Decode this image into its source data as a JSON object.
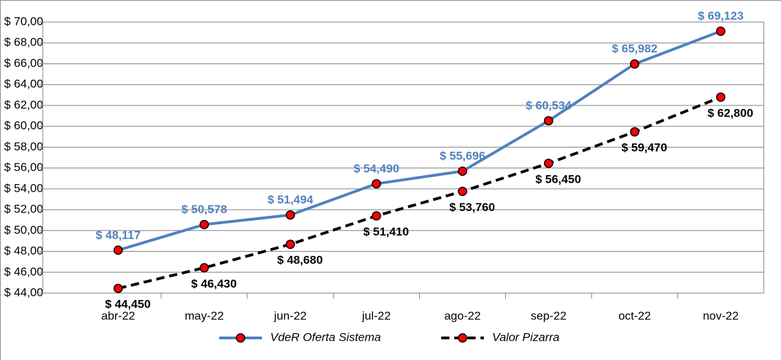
{
  "chart_data": {
    "type": "line",
    "categories": [
      "abr-22",
      "may-22",
      "jun-22",
      "jul-22",
      "ago-22",
      "sep-22",
      "oct-22",
      "nov-22"
    ],
    "series": [
      {
        "name": "VdeR Oferta Sistema",
        "color": "#4f81bd",
        "dashed": false,
        "values": [
          48.117,
          50.578,
          51.494,
          54.49,
          55.696,
          60.534,
          65.982,
          69.123
        ],
        "value_labels": [
          "$ 48,117",
          "$ 50,578",
          "$ 51,494",
          "$ 54,490",
          "$ 55,696",
          "$ 60,534",
          "$ 65,982",
          "$ 69,123"
        ]
      },
      {
        "name": "Valor Pizarra",
        "color": "#000000",
        "dashed": true,
        "values": [
          44.45,
          46.43,
          48.68,
          51.41,
          53.76,
          56.45,
          59.47,
          62.8
        ],
        "value_labels": [
          "$ 44,450",
          "$ 46,430",
          "$ 48,680",
          "$ 51,410",
          "$ 53,760",
          "$ 56,450",
          "$ 59,470",
          "$ 62,800"
        ]
      }
    ],
    "marker_color": "#ff0000",
    "ylim": [
      44,
      70
    ],
    "yticks": [
      {
        "value": 44,
        "label": "$ 44,00"
      },
      {
        "value": 46,
        "label": "$ 46,00"
      },
      {
        "value": 48,
        "label": "$ 48,00"
      },
      {
        "value": 50,
        "label": "$ 50,00"
      },
      {
        "value": 52,
        "label": "$ 52,00"
      },
      {
        "value": 54,
        "label": "$ 54,00"
      },
      {
        "value": 56,
        "label": "$ 56,00"
      },
      {
        "value": 58,
        "label": "$ 58,00"
      },
      {
        "value": 60,
        "label": "$ 60,00"
      },
      {
        "value": 62,
        "label": "$ 62,00"
      },
      {
        "value": 64,
        "label": "$ 64,00"
      },
      {
        "value": 66,
        "label": "$ 66,00"
      },
      {
        "value": 68,
        "label": "$ 68,00"
      },
      {
        "value": 70,
        "label": "$ 70,00"
      }
    ],
    "grid": true,
    "legend": "bottom"
  }
}
